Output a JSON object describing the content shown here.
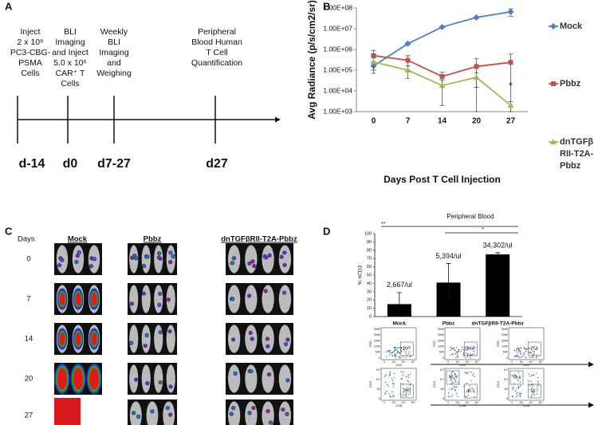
{
  "panel_labels": [
    "A",
    "B",
    "C",
    "D"
  ],
  "panel_a": {
    "steps": [
      {
        "lines": [
          "Inject",
          "2 x 10⁶",
          "PC3-CBG-",
          "PSMA",
          "Cells"
        ],
        "day": "d-14"
      },
      {
        "lines": [
          "BLI",
          "Imaging",
          "and Inject",
          "5.0 x 10⁶",
          "CAR⁺ T",
          "Cells"
        ],
        "day": "d0"
      },
      {
        "lines": [
          "Weekly",
          "BLI",
          "Imaging",
          "and",
          "Weighing"
        ],
        "day": "d7-27"
      },
      {
        "lines": [
          "Peripheral",
          "Blood Human",
          "T Cell",
          "Quantification"
        ],
        "day": "d27"
      }
    ]
  },
  "chart_data": [
    {
      "type": "line",
      "log_y": true,
      "legend": "right",
      "y_label": "Avg Radiance (p/s/cm2/sr)",
      "x_label": "Days Post T Cell Injection",
      "categories": [
        "0",
        "7",
        "14",
        "20",
        "27"
      ],
      "ylim": [
        1000,
        100000000
      ],
      "yticks": [
        {
          "value": 1000,
          "label": "1.00E+03"
        },
        {
          "value": 10000,
          "label": "1.00E+04"
        },
        {
          "value": 100000,
          "label": "1.00E+05"
        },
        {
          "value": 1000000,
          "label": "1.00E+06"
        },
        {
          "value": 10000000,
          "label": "1.00E+07"
        },
        {
          "value": 100000000,
          "label": "1.00E+08"
        }
      ],
      "series": [
        {
          "name": "Mock",
          "color": "#4f81bd",
          "marker": "diamond",
          "values": [
            160000,
            1900000,
            12000000,
            35000000,
            65000000
          ],
          "errors": [
            90000,
            200000,
            1000000,
            5000000,
            25000000
          ]
        },
        {
          "name": "Pbbz",
          "color": "#c0504d",
          "marker": "square",
          "values": [
            500000,
            300000,
            50000,
            150000,
            240000
          ],
          "errors": [
            400000,
            200000,
            30000,
            220000,
            360000
          ]
        },
        {
          "name": "dnTGFβ RII-T2A- Pbbz",
          "color": "#9bbb59",
          "marker": "triangle",
          "values": [
            250000,
            100000,
            18000,
            45000,
            2000
          ],
          "errors": [
            150000,
            60000,
            16000,
            30000,
            1000
          ]
        }
      ],
      "annotation": "*"
    },
    {
      "type": "bar",
      "title": "Peripheral Blood",
      "y_label": "% hCD3",
      "categories": [
        "Mock",
        "Pbbz",
        "dnTGFβRII-T2A-Pbbz"
      ],
      "values": [
        15,
        41,
        75
      ],
      "errors": [
        14,
        23,
        2
      ],
      "color": "#000000",
      "ylim": [
        0,
        100
      ],
      "yticks": [
        0,
        10,
        20,
        30,
        40,
        50,
        60,
        70,
        80,
        90,
        100
      ],
      "annotations": [
        "2,667/ul",
        "5,394/ul",
        "34,302/ul"
      ],
      "significance": [
        "**",
        "*"
      ]
    }
  ],
  "panel_c": {
    "row_header": "Days",
    "columns": [
      "Mock",
      "Pbbz",
      "dnTGFβRII-T2A-Pbbz"
    ],
    "days": [
      "0",
      "7",
      "14",
      "20",
      "27"
    ]
  },
  "panel_d_flow": {
    "row1": {
      "y_label": "SSC",
      "x_label": "CD3",
      "y_ticks": [
        "250K",
        "200K",
        "150K",
        "100K",
        "50K",
        "0"
      ],
      "x_ticks": [
        "0",
        "10³",
        "10⁴",
        "10⁵"
      ],
      "gates": [
        [
          "10.7"
        ],
        [
          "26.6"
        ],
        [
          "77.1"
        ]
      ]
    },
    "row2": {
      "y_label": "CD4",
      "x_label": "CD8",
      "y_ticks": [
        "10⁵",
        "10⁴",
        "10³",
        "0"
      ],
      "x_ticks": [
        "0",
        "10³",
        "10⁴",
        "10⁵"
      ],
      "gates": [
        [
          "28.3"
        ],
        [
          "52.9",
          "42.3"
        ],
        [
          "58.4",
          "10.7"
        ]
      ]
    }
  }
}
